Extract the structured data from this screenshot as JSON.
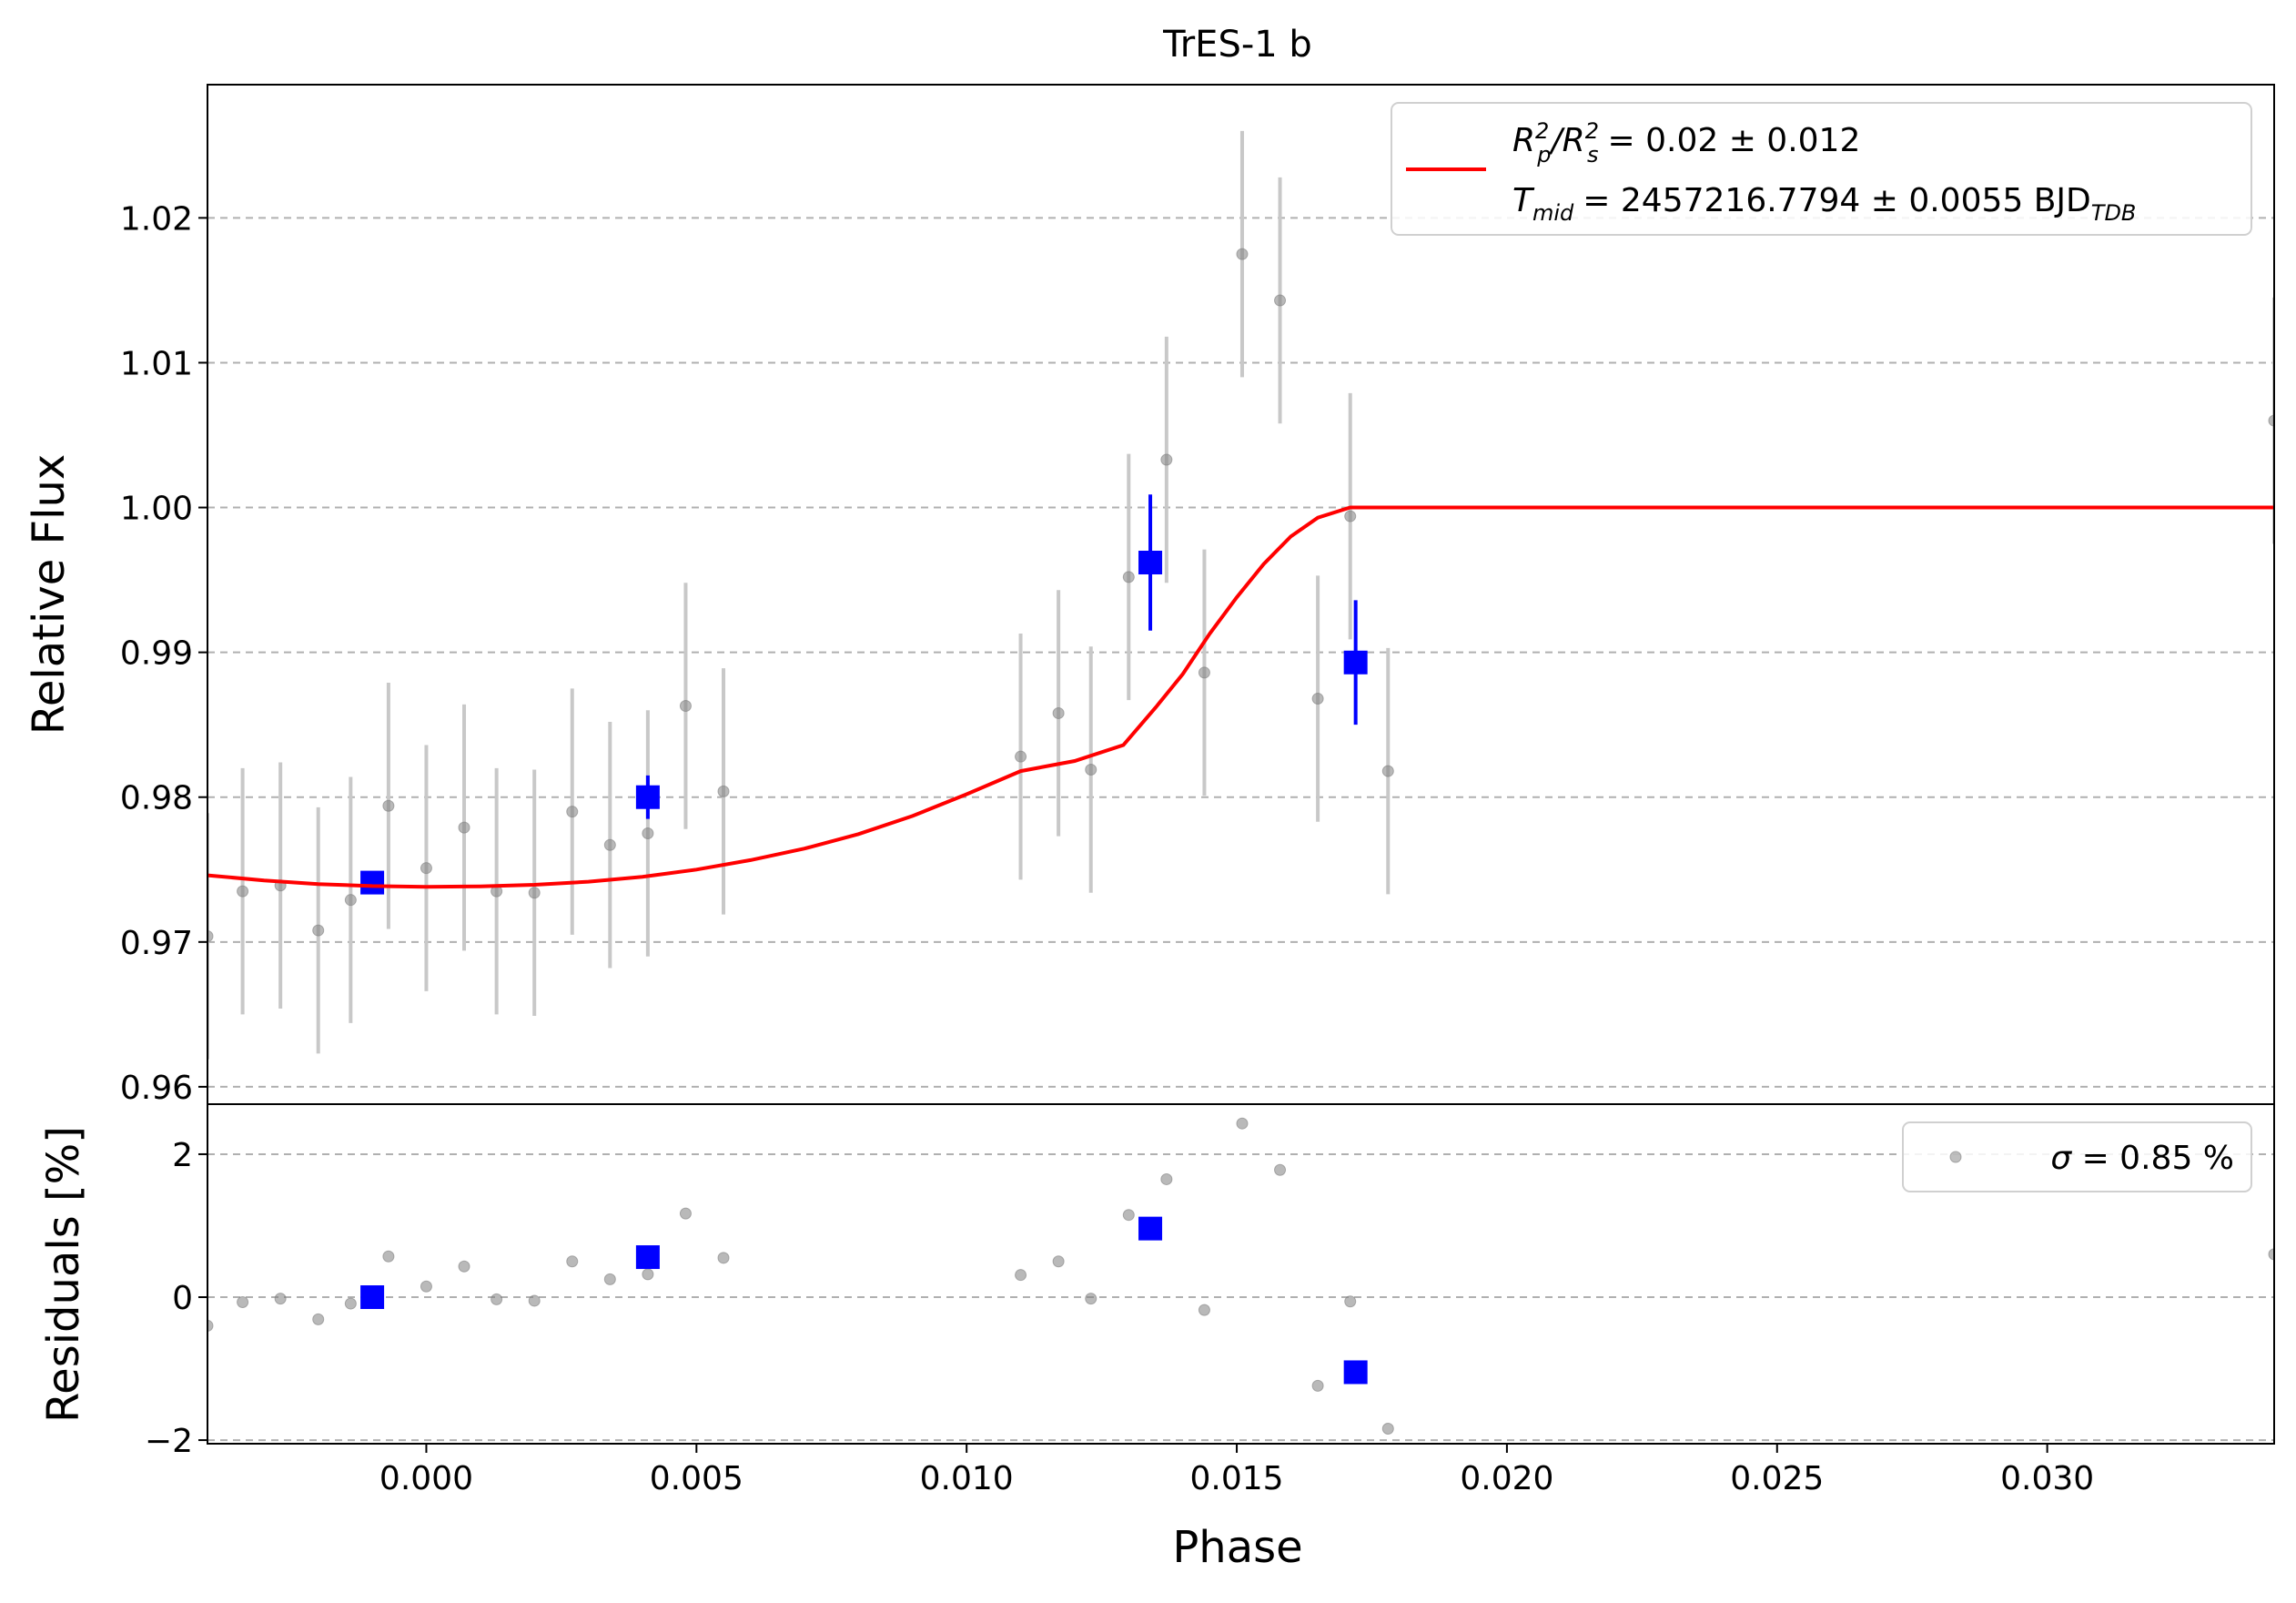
{
  "chart_data": {
    "title": "TrES-1 b",
    "xlabel": "Phase",
    "type": "scatter",
    "xlim": [
      -0.00405,
      0.0342
    ],
    "xticks": [
      {
        "value": 0.0,
        "label": "0.000"
      },
      {
        "value": 0.005,
        "label": "0.005"
      },
      {
        "value": 0.01,
        "label": "0.010"
      },
      {
        "value": 0.015,
        "label": "0.015"
      },
      {
        "value": 0.02,
        "label": "0.020"
      },
      {
        "value": 0.025,
        "label": "0.025"
      },
      {
        "value": 0.03,
        "label": "0.030"
      }
    ],
    "colors": {
      "raw": "#808080",
      "raw_err": "#c8c8c8",
      "binned": "#0000ff",
      "model": "#ff0000",
      "grid": "#b0b0b0"
    },
    "top": {
      "ylabel": "Relative Flux",
      "ylim": [
        0.9588,
        1.0292
      ],
      "grid": true,
      "yticks": [
        {
          "value": 0.96,
          "label": "0.96"
        },
        {
          "value": 0.97,
          "label": "0.97"
        },
        {
          "value": 0.98,
          "label": "0.98"
        },
        {
          "value": 0.99,
          "label": "0.99"
        },
        {
          "value": 1.0,
          "label": "1.00"
        },
        {
          "value": 1.01,
          "label": "1.01"
        },
        {
          "value": 1.02,
          "label": "1.02"
        }
      ],
      "raw": [
        {
          "x": -0.00405,
          "y": 0.9704,
          "err": 0.0085
        },
        {
          "x": -0.0034,
          "y": 0.9735,
          "err": 0.0085
        },
        {
          "x": -0.0027,
          "y": 0.9739,
          "err": 0.0085
        },
        {
          "x": -0.002,
          "y": 0.9708,
          "err": 0.0085
        },
        {
          "x": -0.0014,
          "y": 0.9729,
          "err": 0.0085
        },
        {
          "x": -0.0007,
          "y": 0.9794,
          "err": 0.0085
        },
        {
          "x": 0.0,
          "y": 0.9751,
          "err": 0.0085
        },
        {
          "x": 0.0007,
          "y": 0.9779,
          "err": 0.0085
        },
        {
          "x": 0.0013,
          "y": 0.9735,
          "err": 0.0085
        },
        {
          "x": 0.002,
          "y": 0.9734,
          "err": 0.0085
        },
        {
          "x": 0.0027,
          "y": 0.979,
          "err": 0.0085
        },
        {
          "x": 0.0034,
          "y": 0.9767,
          "err": 0.0085
        },
        {
          "x": 0.0041,
          "y": 0.9775,
          "err": 0.0085
        },
        {
          "x": 0.0048,
          "y": 0.9863,
          "err": 0.0085
        },
        {
          "x": 0.0055,
          "y": 0.9804,
          "err": 0.0085
        },
        {
          "x": 0.011,
          "y": 0.9828,
          "err": 0.0085
        },
        {
          "x": 0.0117,
          "y": 0.9858,
          "err": 0.0085
        },
        {
          "x": 0.0123,
          "y": 0.9819,
          "err": 0.0085
        },
        {
          "x": 0.013,
          "y": 0.9952,
          "err": 0.0085
        },
        {
          "x": 0.0137,
          "y": 1.0033,
          "err": 0.0085
        },
        {
          "x": 0.0144,
          "y": 0.9886,
          "err": 0.0085
        },
        {
          "x": 0.0151,
          "y": 1.0175,
          "err": 0.0085
        },
        {
          "x": 0.0158,
          "y": 1.0143,
          "err": 0.0085
        },
        {
          "x": 0.0165,
          "y": 0.9868,
          "err": 0.0085
        },
        {
          "x": 0.0171,
          "y": 0.9994,
          "err": 0.0085
        },
        {
          "x": 0.0178,
          "y": 0.9818,
          "err": 0.0085
        },
        {
          "x": 0.0342,
          "y": 1.006,
          "err": 0.0085
        }
      ],
      "binned": [
        {
          "x": -0.001,
          "y": 0.9741,
          "err": 0.0004
        },
        {
          "x": 0.0041,
          "y": 0.98,
          "err": 0.0015
        },
        {
          "x": 0.0134,
          "y": 0.9962,
          "err": 0.0047
        },
        {
          "x": 0.0172,
          "y": 0.9893,
          "err": 0.0043
        }
      ],
      "model": [
        [
          -0.00405,
          0.9746
        ],
        [
          -0.003,
          0.97425
        ],
        [
          -0.002,
          0.974
        ],
        [
          -0.001,
          0.97386
        ],
        [
          0.0,
          0.97381
        ],
        [
          0.001,
          0.97384
        ],
        [
          0.002,
          0.97395
        ],
        [
          0.003,
          0.97416
        ],
        [
          0.004,
          0.9745
        ],
        [
          0.005,
          0.975
        ],
        [
          0.006,
          0.97565
        ],
        [
          0.007,
          0.97645
        ],
        [
          0.008,
          0.97745
        ],
        [
          0.009,
          0.9787
        ],
        [
          0.01,
          0.9802
        ],
        [
          0.011,
          0.9818
        ],
        [
          0.012,
          0.9825
        ],
        [
          0.0129,
          0.9836
        ],
        [
          0.0135,
          0.9862
        ],
        [
          0.014,
          0.9885
        ],
        [
          0.0145,
          0.9913
        ],
        [
          0.015,
          0.9938
        ],
        [
          0.0155,
          0.9961
        ],
        [
          0.016,
          0.998
        ],
        [
          0.0165,
          0.9993
        ],
        [
          0.0171,
          1.0
        ],
        [
          0.0342,
          1.0
        ]
      ],
      "legend": {
        "line1": "= 0.02 ± 0.012",
        "line2": "= 2457216.7794 ± 0.0055 BJD",
        "line2_sub": "TDB",
        "position": "top-right"
      }
    },
    "bottom": {
      "ylabel": "Residuals [%]",
      "ylim": [
        -2.05,
        2.7
      ],
      "grid": true,
      "yticks": [
        {
          "value": -2,
          "label": "−2"
        },
        {
          "value": 0,
          "label": "0"
        },
        {
          "value": 2,
          "label": "2"
        }
      ],
      "raw": [
        {
          "x": -0.00405,
          "y": -0.4
        },
        {
          "x": -0.0034,
          "y": -0.07
        },
        {
          "x": -0.0027,
          "y": -0.02
        },
        {
          "x": -0.002,
          "y": -0.31
        },
        {
          "x": -0.0014,
          "y": -0.09
        },
        {
          "x": -0.0007,
          "y": 0.57
        },
        {
          "x": 0.0,
          "y": 0.15
        },
        {
          "x": 0.0007,
          "y": 0.43
        },
        {
          "x": 0.0013,
          "y": -0.03
        },
        {
          "x": 0.002,
          "y": -0.05
        },
        {
          "x": 0.0027,
          "y": 0.5
        },
        {
          "x": 0.0034,
          "y": 0.25
        },
        {
          "x": 0.0041,
          "y": 0.32
        },
        {
          "x": 0.0048,
          "y": 1.17
        },
        {
          "x": 0.0055,
          "y": 0.55
        },
        {
          "x": 0.011,
          "y": 0.31
        },
        {
          "x": 0.0117,
          "y": 0.5
        },
        {
          "x": 0.0123,
          "y": -0.02
        },
        {
          "x": 0.013,
          "y": 1.15
        },
        {
          "x": 0.0137,
          "y": 1.65
        },
        {
          "x": 0.0144,
          "y": -0.18
        },
        {
          "x": 0.0151,
          "y": 2.43
        },
        {
          "x": 0.0158,
          "y": 1.78
        },
        {
          "x": 0.0165,
          "y": -1.24
        },
        {
          "x": 0.0171,
          "y": -0.06
        },
        {
          "x": 0.0178,
          "y": -1.84
        },
        {
          "x": 0.0342,
          "y": 0.6
        }
      ],
      "binned": [
        {
          "x": -0.001,
          "y": 0.0
        },
        {
          "x": 0.0041,
          "y": 0.56
        },
        {
          "x": 0.0134,
          "y": 0.96
        },
        {
          "x": 0.0172,
          "y": -1.05
        }
      ],
      "legend": {
        "text": "= 0.85 %",
        "position": "top-right"
      }
    }
  }
}
